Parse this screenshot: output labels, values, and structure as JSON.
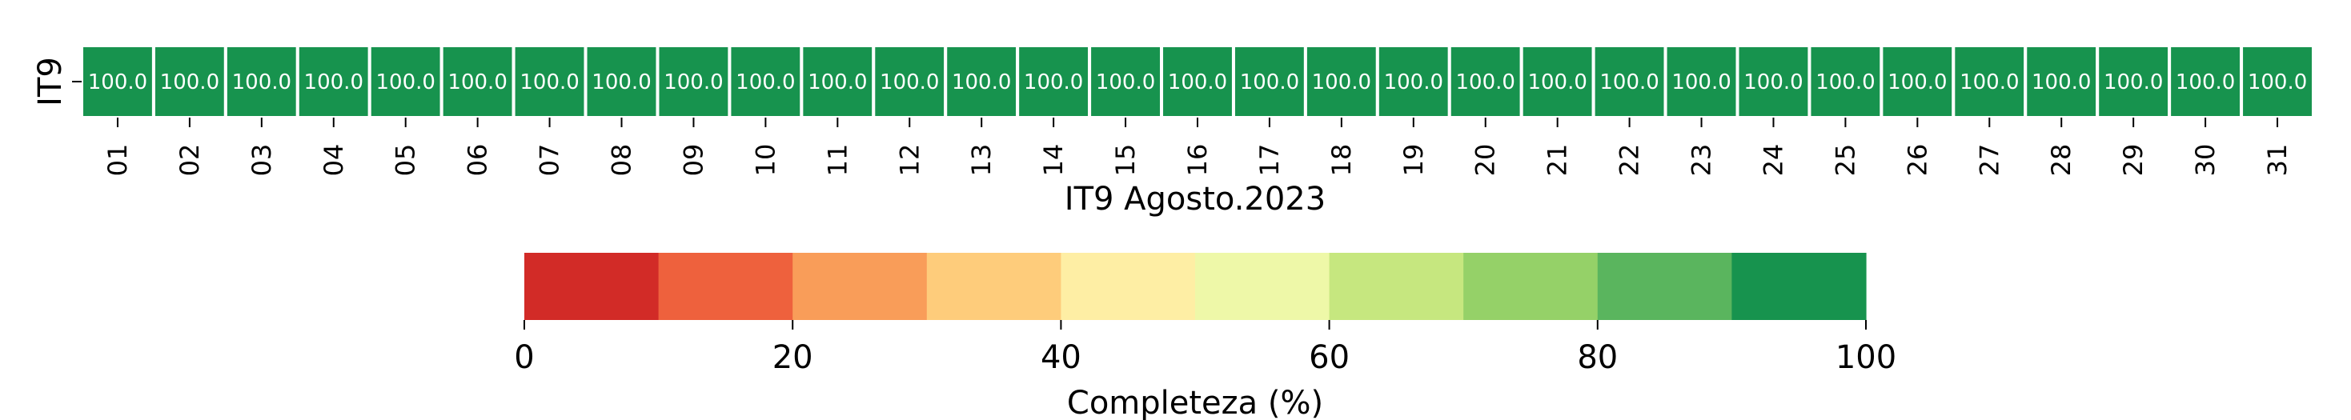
{
  "chart_data": {
    "type": "heatmap",
    "title": "",
    "rows": [
      "IT9"
    ],
    "columns": [
      "01",
      "02",
      "03",
      "04",
      "05",
      "06",
      "07",
      "08",
      "09",
      "10",
      "11",
      "12",
      "13",
      "14",
      "15",
      "16",
      "17",
      "18",
      "19",
      "20",
      "21",
      "22",
      "23",
      "24",
      "25",
      "26",
      "27",
      "28",
      "29",
      "30",
      "31"
    ],
    "values": [
      [
        100.0,
        100.0,
        100.0,
        100.0,
        100.0,
        100.0,
        100.0,
        100.0,
        100.0,
        100.0,
        100.0,
        100.0,
        100.0,
        100.0,
        100.0,
        100.0,
        100.0,
        100.0,
        100.0,
        100.0,
        100.0,
        100.0,
        100.0,
        100.0,
        100.0,
        100.0,
        100.0,
        100.0,
        100.0,
        100.0,
        100.0
      ]
    ],
    "cell_labels": [
      [
        "100.0",
        "100.0",
        "100.0",
        "100.0",
        "100.0",
        "100.0",
        "100.0",
        "100.0",
        "100.0",
        "100.0",
        "100.0",
        "100.0",
        "100.0",
        "100.0",
        "100.0",
        "100.0",
        "100.0",
        "100.0",
        "100.0",
        "100.0",
        "100.0",
        "100.0",
        "100.0",
        "100.0",
        "100.0",
        "100.0",
        "100.0",
        "100.0",
        "100.0",
        "100.0",
        "100.0"
      ]
    ],
    "xlabel": "IT9 Agosto.2023",
    "ylabel": "",
    "colorbar": {
      "label": "Completeza (%)",
      "range": [
        0,
        100
      ],
      "ticks": [
        "0",
        "20",
        "40",
        "60",
        "80",
        "100"
      ],
      "tick_values": [
        0,
        20,
        40,
        60,
        80,
        100
      ],
      "bins": [
        {
          "from": 0,
          "to": 10,
          "color": "#d22b27"
        },
        {
          "from": 10,
          "to": 20,
          "color": "#ee613d"
        },
        {
          "from": 20,
          "to": 30,
          "color": "#f99d59"
        },
        {
          "from": 30,
          "to": 40,
          "color": "#fecc7b"
        },
        {
          "from": 40,
          "to": 50,
          "color": "#feeea4"
        },
        {
          "from": 50,
          "to": 60,
          "color": "#eef8a8"
        },
        {
          "from": 60,
          "to": 70,
          "color": "#c6e77f"
        },
        {
          "from": 70,
          "to": 80,
          "color": "#95d168"
        },
        {
          "from": 80,
          "to": 90,
          "color": "#5ab55e"
        },
        {
          "from": 90,
          "to": 100,
          "color": "#17934e"
        }
      ]
    },
    "cell_text_color": "#ffffff",
    "cell_border_color": "#ffffff"
  }
}
